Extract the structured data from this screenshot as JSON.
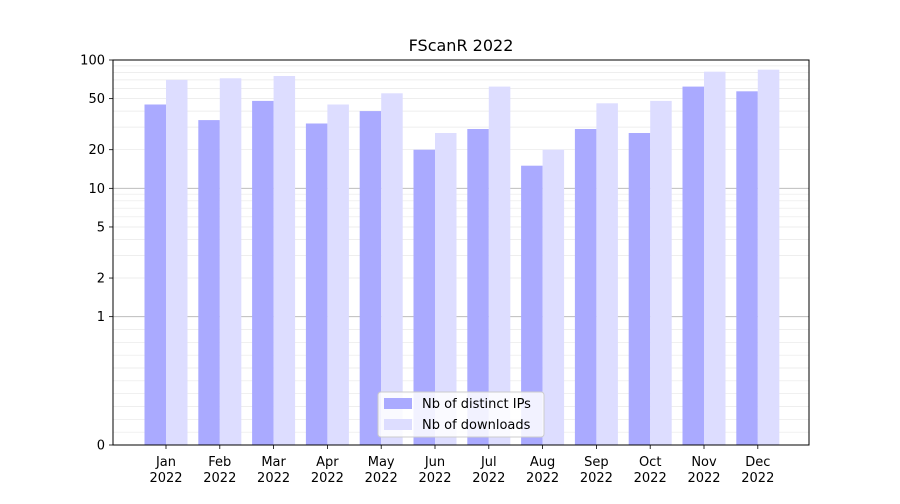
{
  "chart_data": {
    "type": "bar",
    "title": "FScanR 2022",
    "xlabel": "",
    "ylabel": "",
    "yscale": "symlog",
    "ylim": [
      0,
      100
    ],
    "yticks": [
      0,
      1,
      2,
      5,
      10,
      20,
      50,
      100
    ],
    "ytick_labels": [
      "0",
      "1",
      "2",
      "5",
      "10",
      "20",
      "50",
      "100"
    ],
    "grid": "horizontal",
    "legend_position": "bottom-center",
    "categories": [
      [
        "Jan",
        "2022"
      ],
      [
        "Feb",
        "2022"
      ],
      [
        "Mar",
        "2022"
      ],
      [
        "Apr",
        "2022"
      ],
      [
        "May",
        "2022"
      ],
      [
        "Jun",
        "2022"
      ],
      [
        "Jul",
        "2022"
      ],
      [
        "Aug",
        "2022"
      ],
      [
        "Sep",
        "2022"
      ],
      [
        "Oct",
        "2022"
      ],
      [
        "Nov",
        "2022"
      ],
      [
        "Dec",
        "2022"
      ]
    ],
    "series": [
      {
        "name": "Nb of distinct IPs",
        "color": "#aaaaff",
        "values": [
          45,
          34,
          48,
          32,
          40,
          20,
          29,
          15,
          29,
          27,
          62,
          57
        ]
      },
      {
        "name": "Nb of downloads",
        "color": "#ddddff",
        "values": [
          70,
          72,
          75,
          45,
          55,
          27,
          62,
          20,
          46,
          48,
          81,
          84
        ]
      }
    ]
  }
}
